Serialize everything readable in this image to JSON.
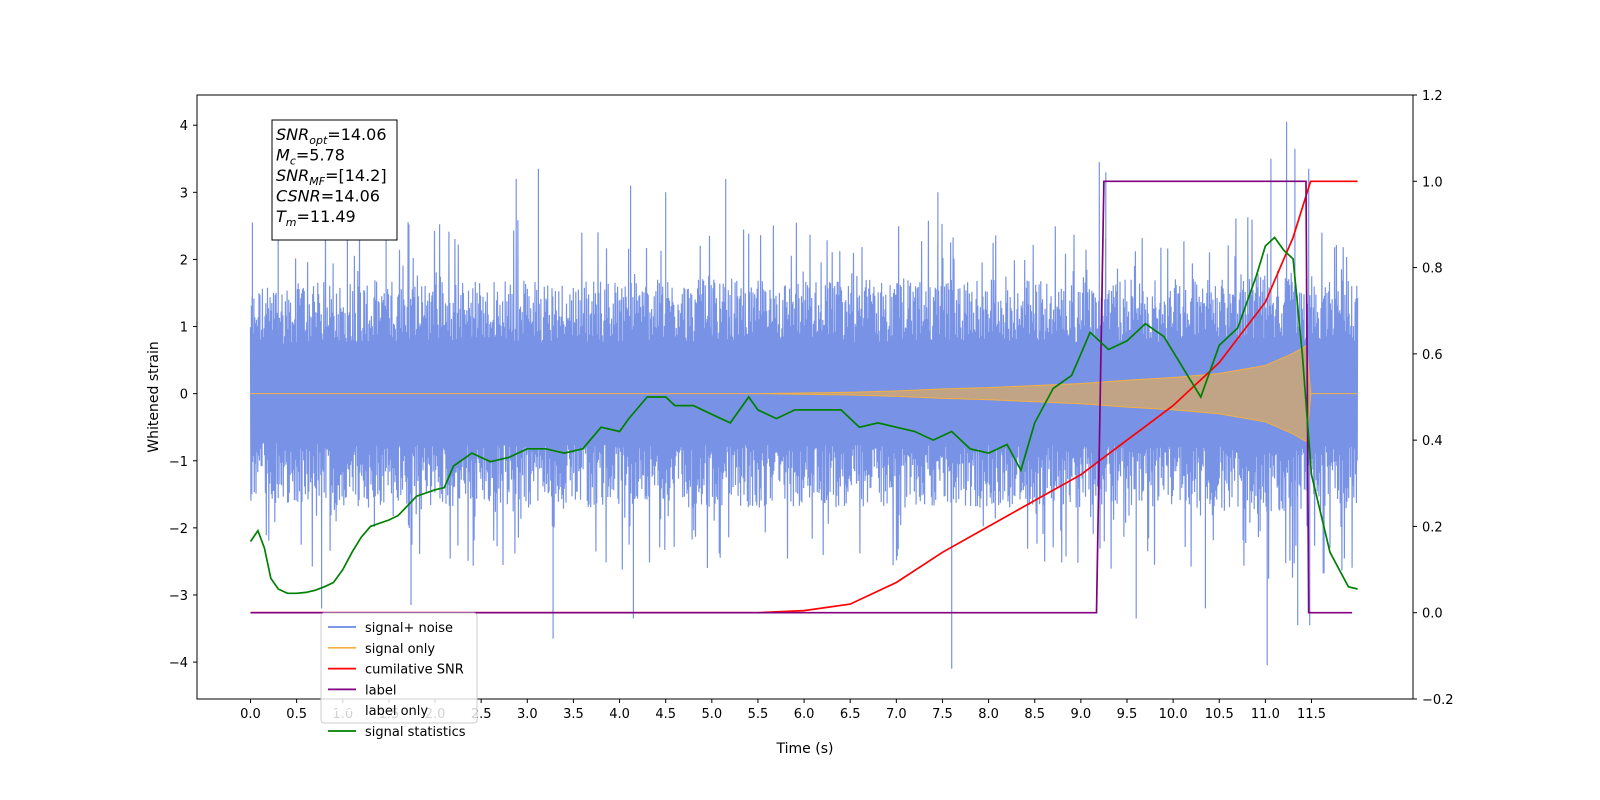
{
  "chart_data": {
    "type": "line",
    "xlabel": "Time (s)",
    "ylabel": "Whitened strain",
    "ylabel_right": "",
    "xlim": [
      -0.58,
      12.6
    ],
    "ylim": [
      -4.55,
      4.45
    ],
    "ylim_right": [
      -0.2,
      1.2
    ],
    "x_ticks": [
      0.0,
      0.5,
      1.0,
      1.5,
      2.0,
      2.5,
      3.0,
      3.5,
      4.0,
      4.5,
      5.0,
      5.5,
      6.0,
      6.5,
      7.0,
      7.5,
      8.0,
      8.5,
      9.0,
      9.5,
      10.0,
      10.5,
      11.0,
      11.5
    ],
    "x_tick_labels": [
      "0.0",
      "0.5",
      "1.0",
      "1.5",
      "2.0",
      "2.5",
      "3.0",
      "3.5",
      "4.0",
      "4.5",
      "5.0",
      "5.5",
      "6.0",
      "6.5",
      "7.0",
      "7.5",
      "8.0",
      "8.5",
      "9.0",
      "9.5",
      "10.0",
      "10.5",
      "11.0",
      "11.5"
    ],
    "y_ticks": [
      4,
      3,
      2,
      1,
      0,
      -1,
      -2,
      -3,
      -4
    ],
    "y_tick_labels": [
      "4",
      "3",
      "2",
      "1",
      "0",
      "−1",
      "−2",
      "−3",
      "−4"
    ],
    "y_ticks_right": [
      1.2,
      1.0,
      0.8,
      0.6,
      0.4,
      0.2,
      0.0,
      -0.2
    ],
    "y_tick_labels_right": [
      "1.2",
      "1.0",
      "0.8",
      "0.6",
      "0.4",
      "0.2",
      "0.0",
      "−0.2"
    ],
    "grid": false,
    "legend_position": "lower-left",
    "series": [
      {
        "name": "signal+ noise",
        "axis": "left",
        "color": "#6c8ae4",
        "style": "noise band",
        "x_range": [
          0.0,
          12.0
        ],
        "band_upper": [
          [
            0.0,
            1.6
          ],
          [
            1.0,
            1.7
          ],
          [
            2.0,
            1.7
          ],
          [
            3.0,
            1.7
          ],
          [
            4.0,
            1.7
          ],
          [
            5.0,
            1.7
          ],
          [
            6.0,
            1.7
          ],
          [
            7.0,
            1.7
          ],
          [
            8.0,
            1.7
          ],
          [
            9.0,
            1.7
          ],
          [
            10.0,
            1.7
          ],
          [
            11.0,
            1.8
          ],
          [
            12.0,
            1.7
          ]
        ],
        "band_lower": [
          [
            0.0,
            -1.6
          ],
          [
            1.0,
            -1.7
          ],
          [
            2.0,
            -1.7
          ],
          [
            3.0,
            -1.7
          ],
          [
            4.0,
            -1.7
          ],
          [
            5.0,
            -1.7
          ],
          [
            6.0,
            -1.7
          ],
          [
            7.0,
            -1.7
          ],
          [
            8.0,
            -1.7
          ],
          [
            9.0,
            -1.7
          ],
          [
            10.0,
            -1.7
          ],
          [
            11.0,
            -1.8
          ],
          [
            12.0,
            -1.7
          ]
        ],
        "peaks": [
          [
            0.02,
            2.55
          ],
          [
            0.3,
            2.8
          ],
          [
            1.05,
            2.95
          ],
          [
            1.47,
            2.95
          ],
          [
            2.88,
            3.2
          ],
          [
            3.12,
            3.35
          ],
          [
            3.28,
            -3.65
          ],
          [
            4.12,
            3.1
          ],
          [
            4.15,
            -3.35
          ],
          [
            4.5,
            3.0
          ],
          [
            5.15,
            3.2
          ],
          [
            7.45,
            3.0
          ],
          [
            7.6,
            -4.1
          ],
          [
            9.2,
            3.45
          ],
          [
            9.6,
            -3.35
          ],
          [
            9.27,
            3.3
          ],
          [
            10.35,
            -3.2
          ],
          [
            11.23,
            4.05
          ],
          [
            11.32,
            3.65
          ],
          [
            11.47,
            3.35
          ],
          [
            11.06,
            3.5
          ],
          [
            11.02,
            -4.05
          ],
          [
            11.48,
            -3.45
          ],
          [
            1.74,
            -3.15
          ],
          [
            0.77,
            -3.2
          ],
          [
            11.35,
            -3.45
          ]
        ]
      },
      {
        "name": "signal only",
        "axis": "left",
        "color": "#f5b041",
        "style": "chirp envelope",
        "envelope": [
          [
            0.0,
            0.0
          ],
          [
            5.5,
            0.0
          ],
          [
            6.0,
            0.01
          ],
          [
            6.5,
            0.02
          ],
          [
            7.0,
            0.04
          ],
          [
            7.5,
            0.07
          ],
          [
            8.0,
            0.09
          ],
          [
            8.5,
            0.12
          ],
          [
            9.0,
            0.15
          ],
          [
            9.5,
            0.2
          ],
          [
            10.0,
            0.24
          ],
          [
            10.5,
            0.3
          ],
          [
            11.0,
            0.42
          ],
          [
            11.3,
            0.6
          ],
          [
            11.45,
            0.72
          ],
          [
            11.49,
            0.0
          ],
          [
            12.0,
            0.0
          ]
        ]
      },
      {
        "name": "cumilative SNR",
        "axis": "right",
        "color": "#ff0000",
        "points": [
          [
            0.0,
            0.0
          ],
          [
            5.5,
            0.0
          ],
          [
            6.0,
            0.005
          ],
          [
            6.5,
            0.02
          ],
          [
            7.0,
            0.07
          ],
          [
            7.5,
            0.14
          ],
          [
            8.0,
            0.2
          ],
          [
            8.5,
            0.26
          ],
          [
            9.0,
            0.32
          ],
          [
            9.5,
            0.4
          ],
          [
            10.0,
            0.48
          ],
          [
            10.5,
            0.58
          ],
          [
            11.0,
            0.72
          ],
          [
            11.3,
            0.87
          ],
          [
            11.49,
            1.0
          ],
          [
            11.5,
            1.0
          ],
          [
            12.0,
            1.0
          ]
        ]
      },
      {
        "name": "label",
        "axis": "right",
        "color": "#800080",
        "points": [
          [
            0.0,
            0.0
          ],
          [
            9.17,
            0.0
          ],
          [
            9.25,
            1.0
          ],
          [
            11.44,
            1.0
          ],
          [
            11.47,
            0.0
          ],
          [
            11.94,
            0.0
          ]
        ]
      },
      {
        "name": "label only",
        "axis": "right",
        "color": "#ffffff",
        "points": []
      },
      {
        "name": "signal statistics",
        "axis": "right",
        "color": "#008000",
        "points": [
          [
            0.0,
            0.165
          ],
          [
            0.08,
            0.19
          ],
          [
            0.15,
            0.15
          ],
          [
            0.22,
            0.08
          ],
          [
            0.3,
            0.055
          ],
          [
            0.4,
            0.045
          ],
          [
            0.5,
            0.045
          ],
          [
            0.6,
            0.047
          ],
          [
            0.7,
            0.052
          ],
          [
            0.8,
            0.06
          ],
          [
            0.9,
            0.07
          ],
          [
            1.0,
            0.1
          ],
          [
            1.1,
            0.14
          ],
          [
            1.2,
            0.175
          ],
          [
            1.3,
            0.2
          ],
          [
            1.5,
            0.215
          ],
          [
            1.6,
            0.225
          ],
          [
            1.8,
            0.27
          ],
          [
            2.0,
            0.285
          ],
          [
            2.1,
            0.29
          ],
          [
            2.2,
            0.34
          ],
          [
            2.4,
            0.37
          ],
          [
            2.6,
            0.35
          ],
          [
            2.8,
            0.36
          ],
          [
            3.0,
            0.38
          ],
          [
            3.2,
            0.38
          ],
          [
            3.4,
            0.37
          ],
          [
            3.6,
            0.38
          ],
          [
            3.8,
            0.43
          ],
          [
            4.0,
            0.42
          ],
          [
            4.1,
            0.45
          ],
          [
            4.3,
            0.5
          ],
          [
            4.5,
            0.5
          ],
          [
            4.6,
            0.48
          ],
          [
            4.8,
            0.48
          ],
          [
            5.0,
            0.46
          ],
          [
            5.2,
            0.44
          ],
          [
            5.4,
            0.5
          ],
          [
            5.5,
            0.47
          ],
          [
            5.7,
            0.45
          ],
          [
            5.9,
            0.47
          ],
          [
            6.2,
            0.47
          ],
          [
            6.4,
            0.47
          ],
          [
            6.6,
            0.43
          ],
          [
            6.8,
            0.44
          ],
          [
            7.0,
            0.43
          ],
          [
            7.2,
            0.42
          ],
          [
            7.4,
            0.4
          ],
          [
            7.6,
            0.42
          ],
          [
            7.8,
            0.38
          ],
          [
            8.0,
            0.37
          ],
          [
            8.2,
            0.39
          ],
          [
            8.35,
            0.33
          ],
          [
            8.5,
            0.44
          ],
          [
            8.7,
            0.52
          ],
          [
            8.9,
            0.55
          ],
          [
            9.0,
            0.6
          ],
          [
            9.1,
            0.65
          ],
          [
            9.3,
            0.61
          ],
          [
            9.5,
            0.63
          ],
          [
            9.7,
            0.67
          ],
          [
            9.9,
            0.64
          ],
          [
            10.1,
            0.57
          ],
          [
            10.3,
            0.5
          ],
          [
            10.5,
            0.62
          ],
          [
            10.7,
            0.66
          ],
          [
            10.9,
            0.78
          ],
          [
            11.0,
            0.85
          ],
          [
            11.1,
            0.87
          ],
          [
            11.2,
            0.84
          ],
          [
            11.3,
            0.82
          ],
          [
            11.4,
            0.6
          ],
          [
            11.5,
            0.32
          ],
          [
            11.7,
            0.14
          ],
          [
            11.9,
            0.06
          ],
          [
            12.0,
            0.055
          ]
        ]
      }
    ],
    "annotation": {
      "lines": [
        {
          "base": "SNR",
          "sub": "opt",
          "rest": "=14.06"
        },
        {
          "base": "M",
          "sub": "c",
          "rest": "=5.78"
        },
        {
          "base": "SNR",
          "sub": "MF",
          "rest": "=[14.2]"
        },
        {
          "base": "CSNR",
          "sub": "",
          "rest": "=14.06"
        },
        {
          "base": "T",
          "sub": "m",
          "rest": "=11.49"
        }
      ]
    }
  }
}
